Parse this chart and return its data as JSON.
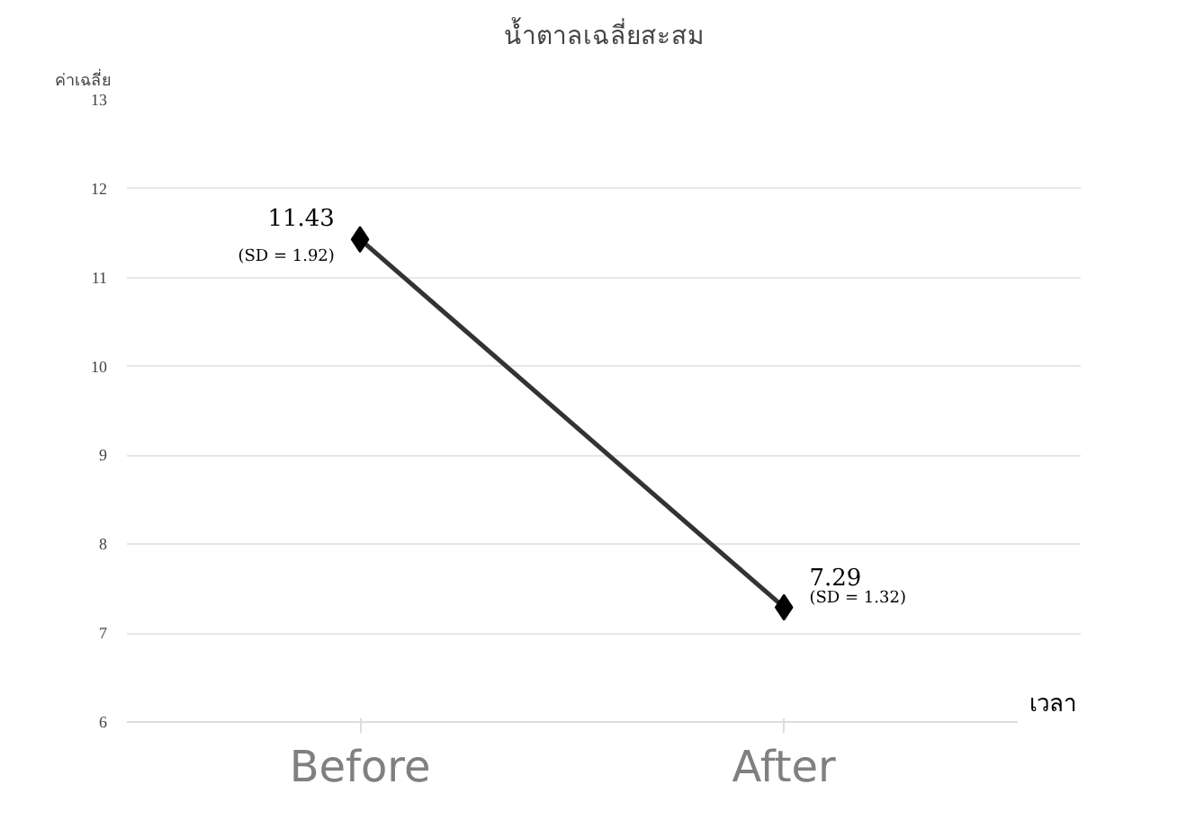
{
  "chart_data": {
    "type": "line",
    "title": "น้ำตาลเฉลี่ยสะสม",
    "ylabel": "ค่าเฉลี่ย",
    "xlabel": "เวลา",
    "categories": [
      "Before",
      "After"
    ],
    "series": [
      {
        "color": "#333333",
        "values": [
          11.43,
          7.29
        ]
      }
    ],
    "data_labels": true,
    "annotations": [
      {
        "text": "(SD = 1.92)",
        "x": "Before",
        "y": 11.43
      },
      {
        "text": "(SD = 1.32)",
        "x": "After",
        "y": 7.29
      }
    ],
    "ylim": [
      6,
      13
    ],
    "yticks": [
      6,
      7,
      8,
      9,
      10,
      11,
      12,
      13
    ],
    "grid": "y",
    "marker": "diamond",
    "line_style": "solid"
  }
}
